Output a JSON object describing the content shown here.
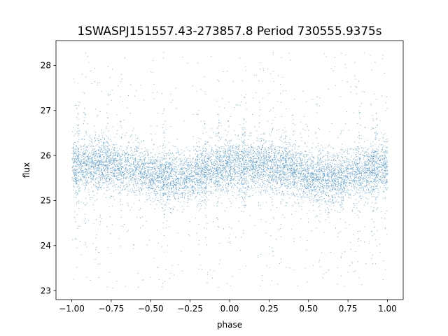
{
  "chart_data": {
    "type": "scatter",
    "title": "1SWASPJ151557.43-273857.8 Period 730555.9375s",
    "xlabel": "phase",
    "ylabel": "flux",
    "xlim": [
      -1.1,
      1.1
    ],
    "ylim": [
      22.8,
      28.55
    ],
    "x_ticks": [
      -1.0,
      -0.75,
      -0.5,
      -0.25,
      0.0,
      0.25,
      0.5,
      0.75,
      1.0
    ],
    "x_tick_labels": [
      "−1.00",
      "−0.75",
      "−0.50",
      "−0.25",
      "0.00",
      "0.25",
      "0.50",
      "0.75",
      "1.00"
    ],
    "y_ticks": [
      23,
      24,
      25,
      26,
      27,
      28
    ],
    "y_tick_labels": [
      "23",
      "24",
      "25",
      "26",
      "27",
      "28"
    ],
    "grid": false,
    "legend": "none",
    "marker_color": "#1f77b4",
    "series": [
      {
        "x_range": [
          -1.0,
          1.0
        ],
        "y_range": [
          23.05,
          28.3
        ],
        "point_count_approx": 40000,
        "phase_flux_median_profile": [
          [
            -1.0,
            25.8
          ],
          [
            -0.9,
            25.75
          ],
          [
            -0.8,
            25.85
          ],
          [
            -0.7,
            25.75
          ],
          [
            -0.6,
            25.7
          ],
          [
            -0.5,
            25.55
          ],
          [
            -0.4,
            25.5
          ],
          [
            -0.3,
            25.5
          ],
          [
            -0.2,
            25.6
          ],
          [
            -0.1,
            25.7
          ],
          [
            0.0,
            25.8
          ],
          [
            0.1,
            25.75
          ],
          [
            0.2,
            25.85
          ],
          [
            0.3,
            25.75
          ],
          [
            0.4,
            25.7
          ],
          [
            0.5,
            25.55
          ],
          [
            0.6,
            25.5
          ],
          [
            0.7,
            25.5
          ],
          [
            0.8,
            25.6
          ],
          [
            0.9,
            25.7
          ],
          [
            1.0,
            25.75
          ]
        ]
      }
    ]
  }
}
